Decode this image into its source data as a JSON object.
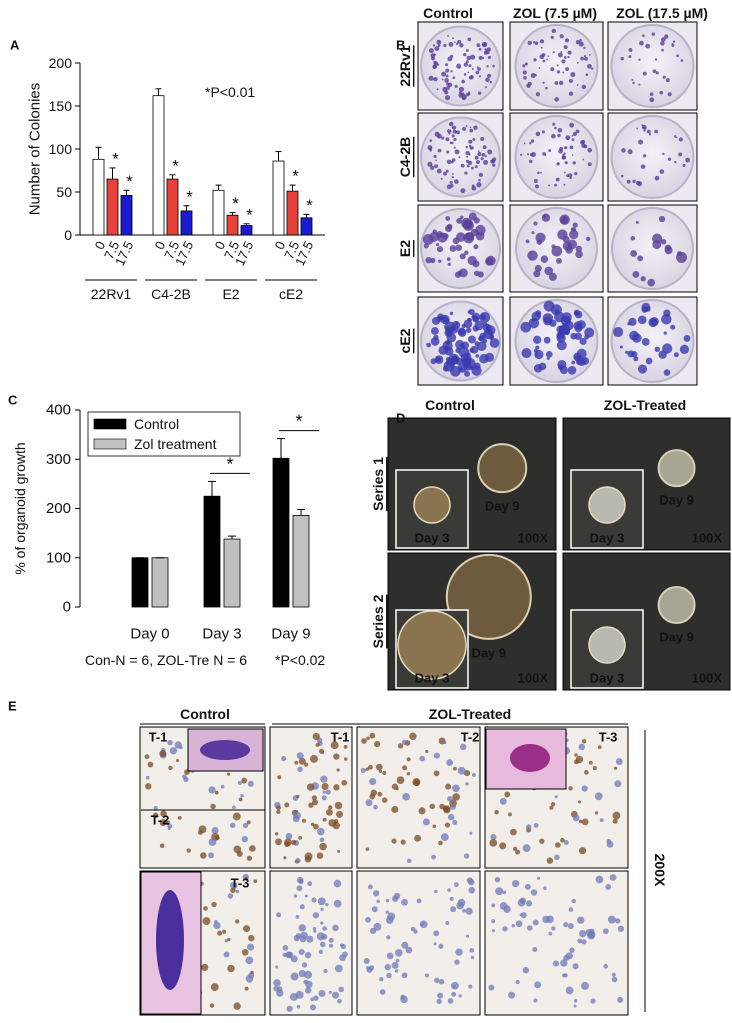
{
  "panel_labels": [
    "A",
    "B",
    "C",
    "D",
    "E"
  ],
  "chart_data": [
    {
      "type": "bar",
      "ylabel": "Number of Colonies",
      "annotation": "*P<0.01",
      "categories": [
        "22Rv1",
        "C4-2B",
        "E2",
        "cE2"
      ],
      "series": [
        {
          "name": "0",
          "color": "#ffffff",
          "values": [
            88,
            162,
            52,
            86
          ],
          "errors": [
            14,
            8,
            6,
            11
          ]
        },
        {
          "name": "7.5",
          "color": "#e8403a",
          "values": [
            65,
            65,
            23,
            51
          ],
          "errors": [
            13,
            5,
            3,
            7
          ],
          "marker": "*"
        },
        {
          "name": "17.5",
          "color": "#1a1ad0",
          "values": [
            46,
            28,
            11,
            20
          ],
          "errors": [
            6,
            6,
            2,
            4
          ],
          "marker": "*"
        }
      ],
      "ylim": [
        0,
        200
      ],
      "yticks": [
        0,
        50,
        100,
        150,
        200
      ]
    },
    {
      "type": "bar",
      "ylabel": "% of organoid growth",
      "categories": [
        "Day 0",
        "Day 3",
        "Day 9"
      ],
      "series": [
        {
          "name": "Control",
          "color": "#000000",
          "values": [
            100,
            225,
            302
          ],
          "errors": [
            0,
            30,
            40
          ]
        },
        {
          "name": "Zol treatment",
          "color": "#c0c0c0",
          "values": [
            100,
            138,
            186
          ],
          "errors": [
            0,
            6,
            12
          ]
        }
      ],
      "significance": [
        null,
        "*",
        "*"
      ],
      "footnote": "Con-N = 6, ZOL-Tre N = 6",
      "annotation": "*P<0.02",
      "legend": "upper left",
      "ylim": [
        0,
        400
      ],
      "yticks": [
        0,
        100,
        200,
        300,
        400
      ]
    }
  ],
  "clonogenic": {
    "column_headers": [
      "Control",
      "ZOL (7.5 µM)",
      "ZOL (17.5 µM)"
    ],
    "row_labels": [
      "22Rv1",
      "C4-2B",
      "E2",
      "cE2"
    ]
  },
  "organoid": {
    "column_headers": [
      "Control",
      "ZOL-Treated"
    ],
    "row_labels": [
      "Series 1",
      "Series 2"
    ],
    "inset_label": "Day 3",
    "main_label": "Day 9",
    "magnification": "100X"
  },
  "histology": {
    "column_headers": [
      "Control",
      "ZOL-Treated"
    ],
    "tissue_labels": [
      "T-1",
      "T-2",
      "T-3"
    ],
    "magnification": "200X"
  }
}
